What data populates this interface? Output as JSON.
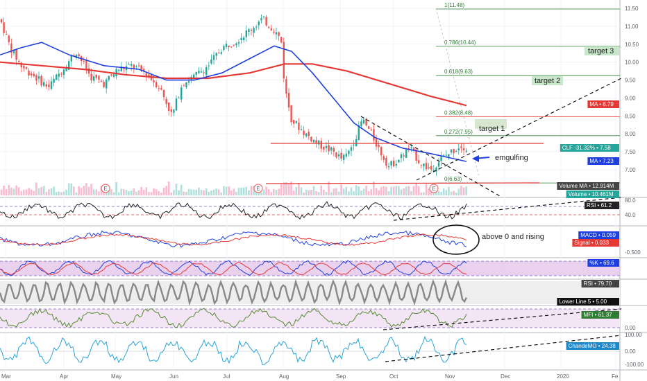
{
  "chart_data": {
    "type": "candlestick",
    "symbol": "CLF",
    "x_axis": {
      "labels": [
        "Mar",
        "Apr",
        "May",
        "Jun",
        "Jul",
        "Aug",
        "Sep",
        "Oct",
        "Nov",
        "Dec",
        "2020",
        "Fe"
      ]
    },
    "price": {
      "y_ticks": [
        "11.50",
        "11.00",
        "10.50",
        "10.00",
        "9.50",
        "9.00",
        "8.50",
        "8.00",
        "7.50",
        "7.00"
      ],
      "ylim": [
        6.4,
        11.6
      ],
      "series_ma_blue_label": "MA",
      "series_ma_red_label": "MA"
    },
    "fib_levels": [
      {
        "label": "1(11.48)",
        "value": 11.48
      },
      {
        "label": "0.786(10.44)",
        "value": 10.44
      },
      {
        "label": "0.618(9.63)",
        "value": 9.63
      },
      {
        "label": "0.382(8.48)",
        "value": 8.48
      },
      {
        "label": "0.272(7.95)",
        "value": 7.95
      },
      {
        "label": "0(6.63)",
        "value": 6.63
      }
    ],
    "targets": [
      "target 3",
      "target 2",
      "target 1"
    ],
    "annotations": {
      "engulfing": "emgulfing",
      "macd_note": "above 0 and rising",
      "earnings_marker": "E"
    },
    "right_badges": [
      {
        "label": "MA",
        "value": "8.79",
        "color": "#e53935"
      },
      {
        "label": "CLF -31.32%",
        "value": "7.58",
        "color": "#26a69a"
      },
      {
        "label": "MA",
        "value": "7.23",
        "color": "#1e40e0"
      },
      {
        "label": "Volume MA",
        "value": "12.914M",
        "color": "#444444"
      },
      {
        "label": "Volume",
        "value": "10.461M",
        "color": "#26a69a"
      },
      {
        "label": "RSI",
        "value": "61.2",
        "color": "#222222"
      },
      {
        "label": "MACD",
        "value": "0.059",
        "color": "#1e40e0"
      },
      {
        "label": "Signal",
        "value": "0.033",
        "color": "#e53935"
      },
      {
        "label": "%K",
        "value": "69.6",
        "color": "#1e40e0"
      },
      {
        "label": "RSI",
        "value": "79.70",
        "color": "#444444"
      },
      {
        "label": "Lower Line 5",
        "value": "5.00",
        "color": "#111111"
      },
      {
        "label": "MFI",
        "value": "61.37",
        "color": "#2e7d32"
      },
      {
        "label": "ChandeMO",
        "value": "24.38",
        "color": "#1e88c8"
      }
    ],
    "panel_ticks": {
      "rsi": [
        "80.0",
        "40.0"
      ],
      "macd": [
        "-0.500"
      ],
      "mfi": [
        "0.00"
      ],
      "cmo": [
        "100.00",
        "0.00",
        "-100.00"
      ]
    }
  }
}
